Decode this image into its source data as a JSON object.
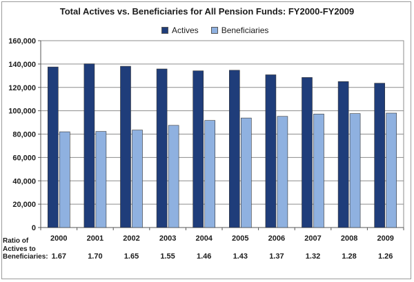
{
  "chart_data": {
    "type": "bar",
    "title": "Total Actives vs. Beneficiaries for All Pension Funds: FY2000-FY2009",
    "categories": [
      "2000",
      "2001",
      "2002",
      "2003",
      "2004",
      "2005",
      "2006",
      "2007",
      "2008",
      "2009"
    ],
    "series": [
      {
        "name": "Actives",
        "color": "#1f3d7a",
        "values": [
          137500,
          140200,
          138100,
          135800,
          134200,
          134700,
          130800,
          128500,
          125000,
          123600
        ]
      },
      {
        "name": "Beneficiaries",
        "color": "#8fb1e0",
        "values": [
          82000,
          82300,
          83500,
          87500,
          91700,
          93800,
          95200,
          97200,
          97600,
          98000
        ]
      }
    ],
    "ylim": [
      0,
      160000
    ],
    "yticks": [
      0,
      20000,
      40000,
      60000,
      80000,
      100000,
      120000,
      140000,
      160000
    ],
    "ytick_labels": [
      "0",
      "20,000",
      "40,000",
      "60,000",
      "80,000",
      "100,000",
      "120,000",
      "140,000",
      "160,000"
    ],
    "grid": true,
    "legend": "top-center",
    "ratio_label": [
      "Ratio of",
      "Actives to",
      "Beneficiaries:"
    ],
    "ratios": [
      "1.67",
      "1.70",
      "1.65",
      "1.55",
      "1.46",
      "1.43",
      "1.37",
      "1.32",
      "1.28",
      "1.26"
    ]
  }
}
